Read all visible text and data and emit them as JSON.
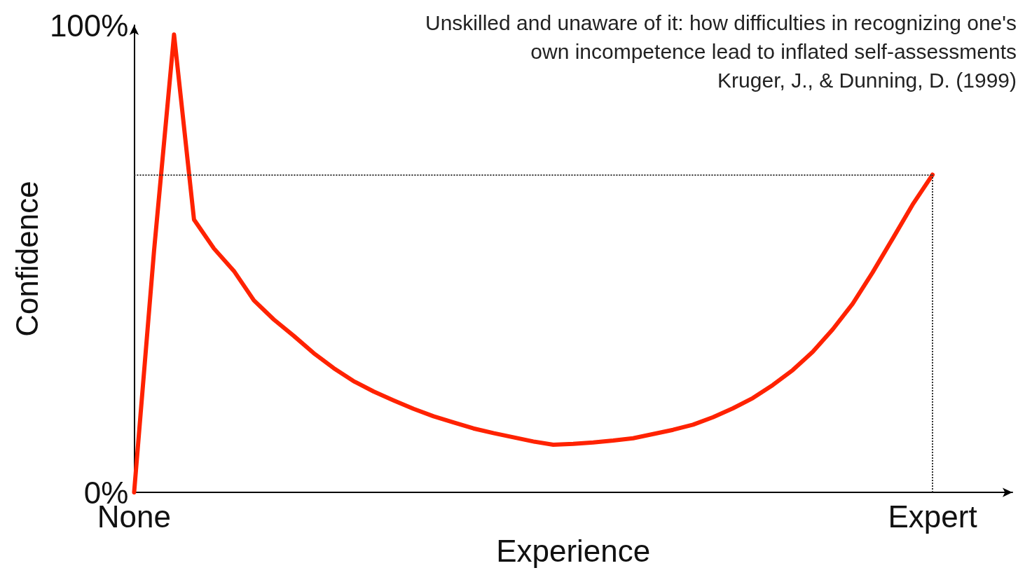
{
  "chart_data": {
    "type": "line",
    "xlabel": "Experience",
    "ylabel": "Confidence",
    "annotations": [
      "Unskilled and unaware of it: how difficulties in recognizing one's own incompetence lead to inflated self-assessments",
      "Kruger, J., & Dunning, D. (1999)"
    ],
    "categories": [
      "None",
      null,
      null,
      null,
      null,
      null,
      null,
      null,
      null,
      null,
      null,
      null,
      null,
      null,
      null,
      null,
      null,
      null,
      null,
      null,
      null,
      null,
      null,
      null,
      null,
      null,
      null,
      null,
      null,
      null,
      null,
      null,
      null,
      null,
      null,
      null,
      null,
      null,
      null,
      null,
      "Expert",
      null,
      null,
      null,
      null
    ],
    "series": [
      {
        "color": "#ff2200",
        "values": [
          0,
          51.8,
          98,
          58.4,
          52.2,
          47.4,
          41.1,
          37,
          33.5,
          29.8,
          26.6,
          23.8,
          21.6,
          19.7,
          17.9,
          16.3,
          15,
          13.7,
          12.7,
          11.8,
          10.9,
          10.2,
          10.4,
          10.7,
          11.1,
          11.6,
          12.5,
          13.4,
          14.5,
          16.1,
          18,
          20.2,
          23,
          26.2,
          30.1,
          34.9,
          40.4,
          47.1,
          54.3,
          61.6,
          68,
          null,
          null,
          null,
          null
        ]
      }
    ],
    "ylim": [
      0,
      100
    ],
    "yticks": [
      {
        "value": 0,
        "label": "0%"
      },
      {
        "value": 100,
        "label": "100%"
      }
    ],
    "ref_lines": [
      {
        "axis": "y",
        "value": 68,
        "color": "#333333",
        "line_style": "dotted"
      },
      {
        "axis": "x",
        "value": "Expert",
        "color": "#333333",
        "line_style": "dotted"
      }
    ],
    "grid": false,
    "marker": "none",
    "line_style": "solid"
  }
}
